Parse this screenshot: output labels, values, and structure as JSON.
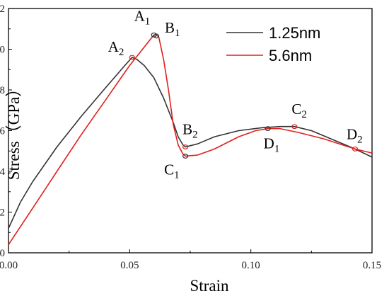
{
  "chart_data": {
    "type": "line",
    "xlabel": "Strain",
    "ylabel": "Stress（GPa）",
    "xlim": [
      0,
      0.15
    ],
    "ylim": [
      0,
      12
    ],
    "xticks": [
      "0.00",
      "0.05",
      "0.10",
      "0.15"
    ],
    "yticks": [
      "0",
      "2",
      "4",
      "6",
      "8",
      "10",
      "12"
    ],
    "grid": false,
    "legend_position": "top-right",
    "series": [
      {
        "name": "1.25nm",
        "color": "#333333",
        "x": [
          0.0,
          0.005,
          0.01,
          0.02,
          0.03,
          0.04,
          0.048,
          0.051,
          0.053,
          0.056,
          0.06,
          0.064,
          0.068,
          0.07,
          0.072,
          0.073,
          0.078,
          0.085,
          0.095,
          0.105,
          0.112,
          0.118,
          0.125,
          0.135,
          0.143,
          0.15
        ],
        "y": [
          1.2,
          2.5,
          3.5,
          5.2,
          6.7,
          8.1,
          9.2,
          9.6,
          9.5,
          9.2,
          8.6,
          7.6,
          6.4,
          5.7,
          5.3,
          5.2,
          5.35,
          5.7,
          6.0,
          6.15,
          6.2,
          6.2,
          6.0,
          5.5,
          5.1,
          4.7
        ]
      },
      {
        "name": "5.6nm",
        "color": "#e0201b",
        "x": [
          0.0,
          0.01,
          0.02,
          0.03,
          0.04,
          0.05,
          0.058,
          0.06,
          0.061,
          0.062,
          0.064,
          0.066,
          0.068,
          0.07,
          0.072,
          0.073,
          0.078,
          0.085,
          0.095,
          0.102,
          0.107,
          0.112,
          0.12,
          0.13,
          0.143,
          0.15
        ],
        "y": [
          0.4,
          2.2,
          4.0,
          5.8,
          7.5,
          9.2,
          10.4,
          10.7,
          10.7,
          10.6,
          9.5,
          8.0,
          6.3,
          5.3,
          4.85,
          4.75,
          4.8,
          5.1,
          5.7,
          6.0,
          6.1,
          6.1,
          5.9,
          5.6,
          5.1,
          4.9
        ]
      }
    ],
    "markers": [
      {
        "series": 1,
        "x": 0.051,
        "y": 9.6,
        "label": "A",
        "sub": "2"
      },
      {
        "series": 0,
        "x": 0.06,
        "y": 10.7,
        "label": "A",
        "sub": "1"
      },
      {
        "series": 0,
        "x": 0.061,
        "y": 10.65,
        "label": "B",
        "sub": "1"
      },
      {
        "series": 1,
        "x": 0.073,
        "y": 5.2,
        "label": "B",
        "sub": "2"
      },
      {
        "series": 0,
        "x": 0.073,
        "y": 4.75,
        "label": "C",
        "sub": "1"
      },
      {
        "series": 0,
        "x": 0.107,
        "y": 6.1,
        "label": "D",
        "sub": "1"
      },
      {
        "series": 1,
        "x": 0.118,
        "y": 6.2,
        "label": "C",
        "sub": "2"
      },
      {
        "series": 1,
        "x": 0.143,
        "y": 5.1,
        "label": "D",
        "sub": "2"
      }
    ]
  }
}
